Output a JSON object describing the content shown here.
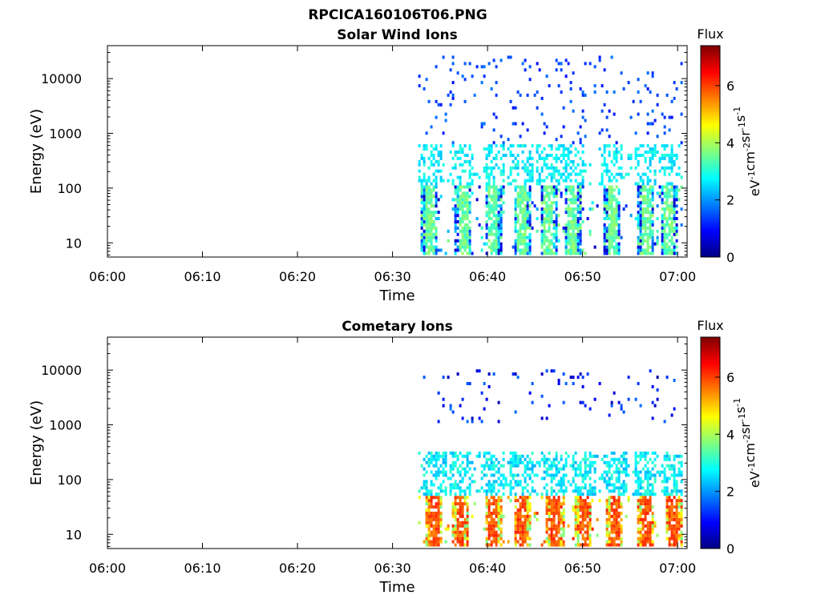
{
  "figure": {
    "title": "RPCICA160106T06.PNG"
  },
  "chart_data": [
    {
      "type": "heatmap",
      "title": "Solar Wind Ions",
      "xlabel": "Time",
      "ylabel": "Energy (eV)",
      "x_tick_labels": [
        "06:00",
        "06:10",
        "06:20",
        "06:30",
        "06:40",
        "06:50",
        "07:00"
      ],
      "x_range_minutes": [
        0,
        61
      ],
      "y_scale": "log",
      "y_range": [
        5.5,
        40000
      ],
      "y_tick_values": [
        10,
        100,
        1000,
        10000
      ],
      "y_tick_labels": [
        "10",
        "100",
        "1000",
        "10000"
      ],
      "colorbar": {
        "title": "Flux",
        "label": "eV-1cm-2sr-1s-1",
        "range": [
          0,
          7.4
        ],
        "tick_values": [
          0,
          2,
          4,
          6
        ],
        "tick_labels": [
          "0",
          "2",
          "4",
          "6"
        ],
        "colormap": "jet"
      },
      "data_start_minute": 32.7,
      "populations": [
        {
          "band": "high energy sparse",
          "energy_range": [
            600,
            25000
          ],
          "flux_range": [
            1.0,
            1.8
          ]
        },
        {
          "band": "mid energy sparse",
          "energy_range": [
            100,
            600
          ],
          "flux_range": [
            2.3,
            3.1
          ]
        },
        {
          "band": "low energy dense",
          "energy_range": [
            6,
            100
          ],
          "flux_range": [
            0.4,
            3.9
          ]
        }
      ],
      "bursts_minutes": [
        33.8,
        37.3,
        40.5,
        43.5,
        46.3,
        48.8,
        53.0,
        56.5,
        59.0
      ]
    },
    {
      "type": "heatmap",
      "title": "Cometary Ions",
      "xlabel": "Time",
      "ylabel": "Energy (eV)",
      "x_tick_labels": [
        "06:00",
        "06:10",
        "06:20",
        "06:30",
        "06:40",
        "06:50",
        "07:00"
      ],
      "x_range_minutes": [
        0,
        61
      ],
      "y_scale": "log",
      "y_range": [
        5.5,
        40000
      ],
      "y_tick_values": [
        10,
        100,
        1000,
        10000
      ],
      "y_tick_labels": [
        "10",
        "100",
        "1000",
        "10000"
      ],
      "colorbar": {
        "title": "Flux",
        "label": "eV-1cm-2sr-1s-1",
        "range": [
          0,
          7.4
        ],
        "tick_values": [
          0,
          2,
          4,
          6
        ],
        "tick_labels": [
          "0",
          "2",
          "4",
          "6"
        ],
        "colormap": "jet"
      },
      "data_start_minute": 32.7,
      "populations": [
        {
          "band": "sparse high energy",
          "energy_range": [
            1000,
            10000
          ],
          "flux_range": [
            0.3,
            1.8
          ]
        },
        {
          "band": "mid energy",
          "energy_range": [
            50,
            300
          ],
          "flux_range": [
            2.2,
            3.2
          ]
        },
        {
          "band": "low energy dense",
          "energy_range": [
            6,
            50
          ],
          "flux_range": [
            3.5,
            6.3
          ]
        }
      ],
      "bursts_minutes": [
        34.3,
        37.0,
        40.5,
        43.5,
        47.0,
        50.0,
        53.3,
        56.5,
        59.5
      ]
    }
  ]
}
